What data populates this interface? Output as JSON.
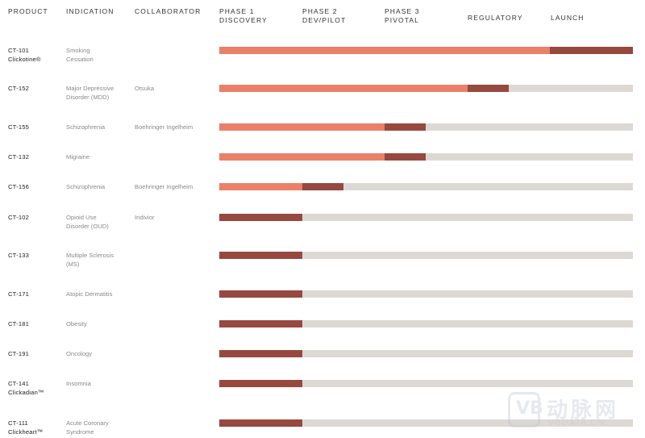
{
  "chart_data": {
    "type": "table",
    "title": "",
    "headers": {
      "product": "PRODUCT",
      "indication": "INDICATION",
      "collaborator": "COLLABORATOR",
      "stages": [
        {
          "line1": "PHASE 1",
          "line2": "DISCOVERY"
        },
        {
          "line1": "PHASE 2",
          "line2": "DEV/PILOT"
        },
        {
          "line1": "PHASE 3",
          "line2": "PIVOTAL"
        },
        {
          "line1": "REGULATORY",
          "line2": ""
        },
        {
          "line1": "LAUNCH",
          "line2": ""
        }
      ]
    },
    "stage_count": 5,
    "colors": {
      "completed": "#ea8068",
      "current": "#97483f",
      "remaining": "#dcd9d5"
    },
    "rows": [
      {
        "product": "CT-101",
        "product_sub": "Clickotine®",
        "indication": [
          "Smoking",
          "Cessation"
        ],
        "collaborator": "",
        "completed_stages": 4,
        "current_stages": 1
      },
      {
        "product": "CT-152",
        "product_sub": "",
        "indication": [
          "Major Depressive",
          "Disorder (MDD)"
        ],
        "collaborator": "Otsuka",
        "completed_stages": 3,
        "current_stages": 0.5
      },
      {
        "product": "CT-155",
        "product_sub": "",
        "indication": [
          "Schizophrenia"
        ],
        "collaborator": "Boehringer Ingelheim",
        "completed_stages": 2,
        "current_stages": 0.5
      },
      {
        "product": "CT-132",
        "product_sub": "",
        "indication": [
          "Migraine"
        ],
        "collaborator": "",
        "completed_stages": 2,
        "current_stages": 0.5
      },
      {
        "product": "CT-156",
        "product_sub": "",
        "indication": [
          "Schizophrenia"
        ],
        "collaborator": "Boehringer Ingelheim",
        "completed_stages": 1,
        "current_stages": 0.5
      },
      {
        "product": "CT-102",
        "product_sub": "",
        "indication": [
          "Opioid Use",
          "Disorder (OUD)"
        ],
        "collaborator": "Indivior",
        "completed_stages": 0,
        "current_stages": 1
      },
      {
        "product": "CT-133",
        "product_sub": "",
        "indication": [
          "Multiple Sclerosis",
          "(MS)"
        ],
        "collaborator": "",
        "completed_stages": 0,
        "current_stages": 1
      },
      {
        "product": "CT-171",
        "product_sub": "",
        "indication": [
          "Atopic Dermatitis"
        ],
        "collaborator": "",
        "completed_stages": 0,
        "current_stages": 1
      },
      {
        "product": "CT-181",
        "product_sub": "",
        "indication": [
          "Obesity"
        ],
        "collaborator": "",
        "completed_stages": 0,
        "current_stages": 1
      },
      {
        "product": "CT-191",
        "product_sub": "",
        "indication": [
          "Oncology"
        ],
        "collaborator": "",
        "completed_stages": 0,
        "current_stages": 1
      },
      {
        "product": "CT-141",
        "product_sub": "Clickadian™",
        "indication": [
          "Insomnia"
        ],
        "collaborator": "",
        "completed_stages": 0,
        "current_stages": 1
      },
      {
        "product": "CT-111",
        "product_sub": "Clickheart™",
        "indication": [
          "Acute Coronary",
          "Syndrome"
        ],
        "collaborator": "",
        "completed_stages": 0,
        "current_stages": 1
      }
    ]
  },
  "watermark": {
    "cn": "动脉网",
    "en": "VBDATA.CN"
  }
}
